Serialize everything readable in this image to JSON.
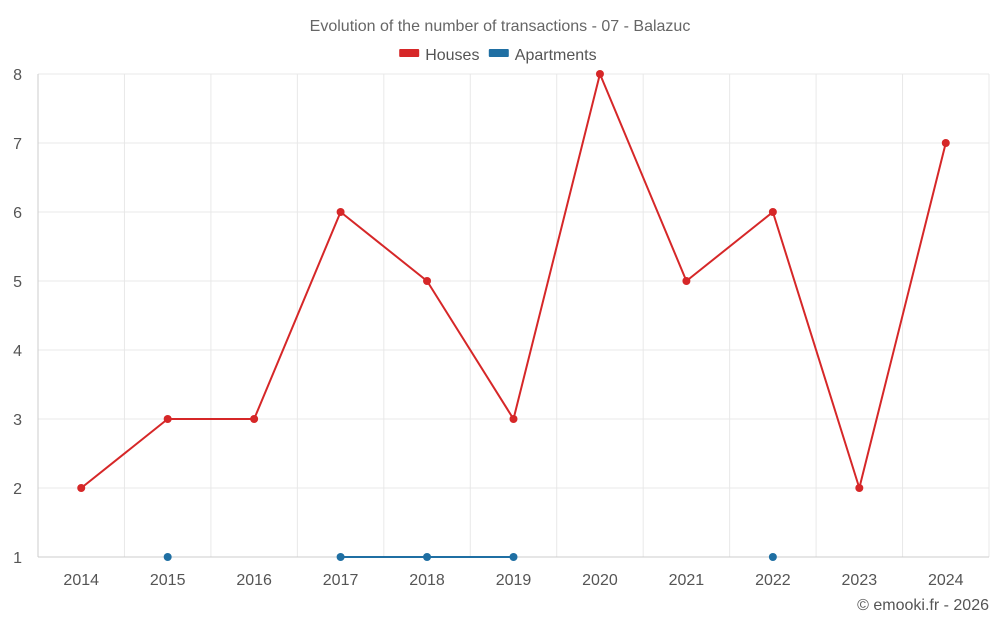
{
  "chart_data": {
    "type": "line",
    "title": "Evolution of the number of transactions - 07 - Balazuc",
    "xlabel": "",
    "ylabel": "",
    "categories": [
      "2014",
      "2015",
      "2016",
      "2017",
      "2018",
      "2019",
      "2020",
      "2021",
      "2022",
      "2023",
      "2024"
    ],
    "ylim": [
      1,
      8
    ],
    "yticks": [
      1,
      2,
      3,
      4,
      5,
      6,
      7,
      8
    ],
    "grid": true,
    "legend_position": "top-center",
    "series": [
      {
        "name": "Houses",
        "color": "#d62728",
        "values": [
          2,
          3,
          3,
          6,
          5,
          3,
          8,
          5,
          6,
          2,
          7
        ]
      },
      {
        "name": "Apartments",
        "color": "#1f6fa3",
        "values": [
          null,
          1,
          null,
          1,
          1,
          1,
          null,
          null,
          1,
          null,
          null
        ]
      }
    ]
  },
  "credit": "© emooki.fr - 2026"
}
